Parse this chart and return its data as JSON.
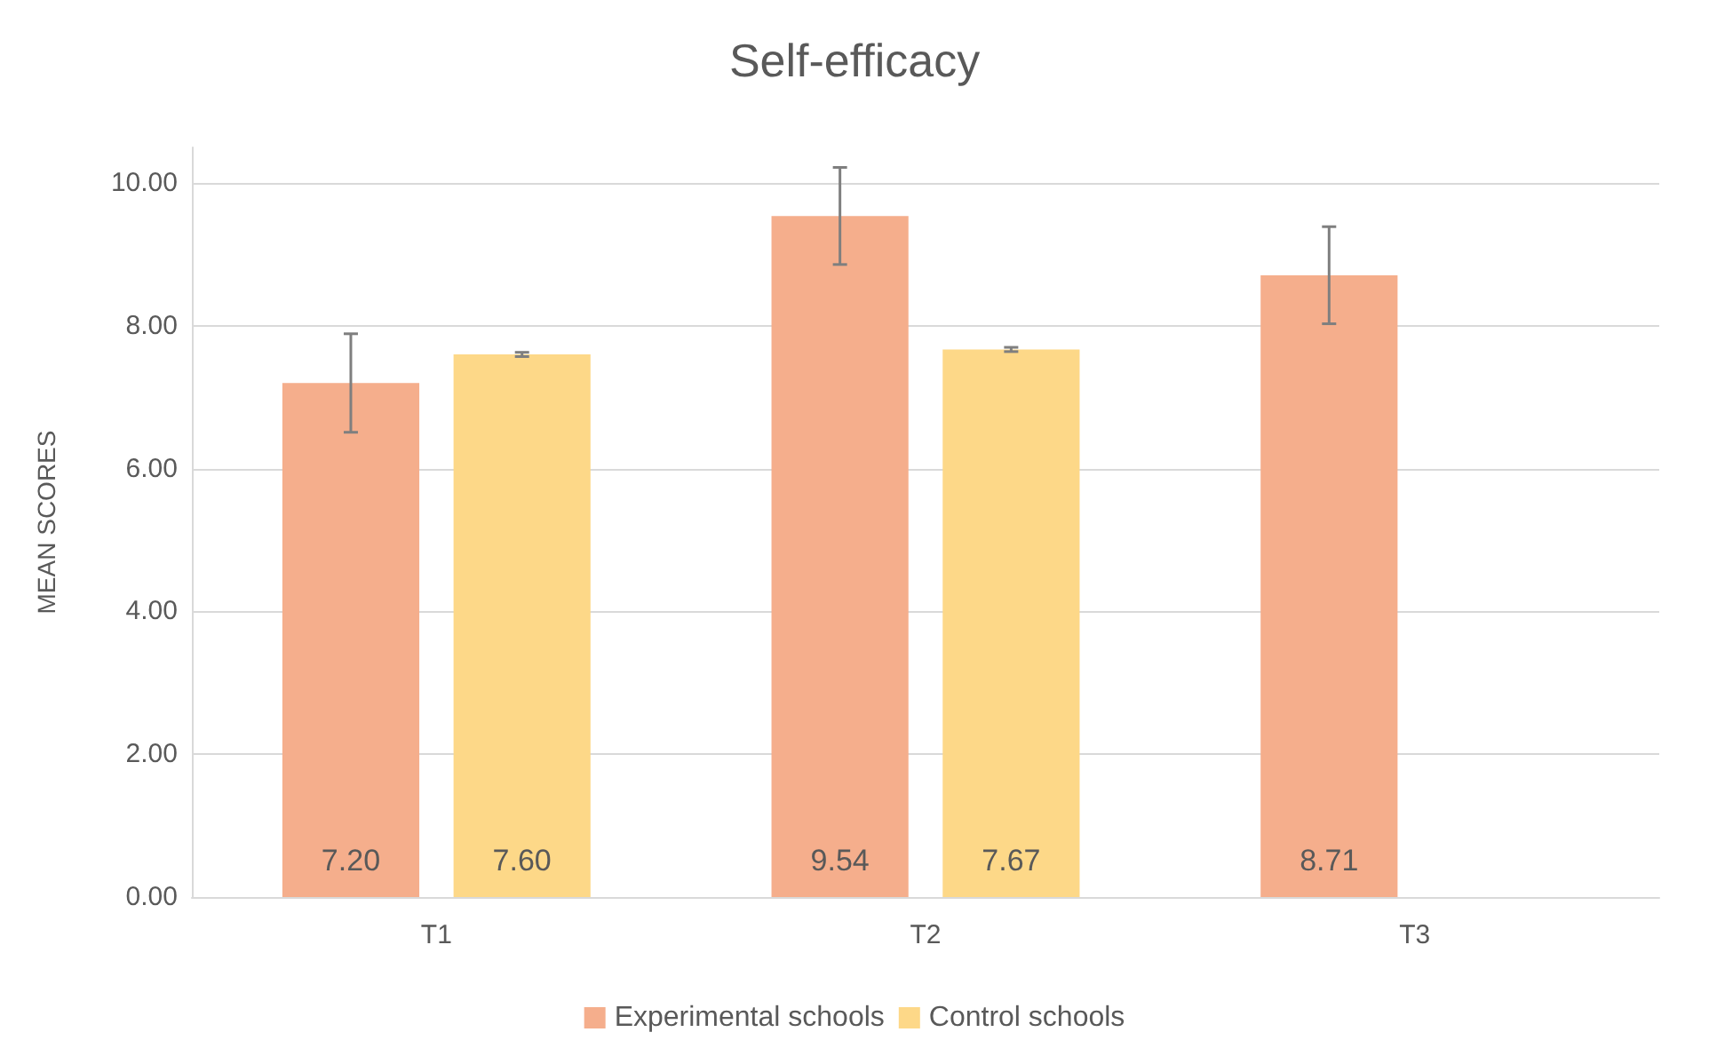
{
  "chart_data": {
    "type": "bar",
    "title": "Self-efficacy",
    "ylabel": "MEAN SCORES",
    "categories": [
      "T1",
      "T2",
      "T3"
    ],
    "series": [
      {
        "name": "Experimental schools",
        "color": "#f5ae8c",
        "values": [
          7.2,
          9.54,
          8.71
        ],
        "value_labels": [
          "7.20",
          "9.54",
          "8.71"
        ],
        "errors": [
          0.69,
          0.68,
          0.68
        ]
      },
      {
        "name": "Control schools",
        "color": "#fdd888",
        "values": [
          7.6,
          7.67,
          null
        ],
        "value_labels": [
          "7.60",
          "7.67",
          null
        ],
        "errors": [
          0.03,
          0.03,
          null
        ]
      }
    ],
    "ylim": [
      0,
      10.5
    ],
    "yticks": [
      {
        "value": 0,
        "label": "0.00"
      },
      {
        "value": 2,
        "label": "2.00"
      },
      {
        "value": 4,
        "label": "4.00"
      },
      {
        "value": 6,
        "label": "6.00"
      },
      {
        "value": 8,
        "label": "8.00"
      },
      {
        "value": 10,
        "label": "10.00"
      }
    ],
    "grid": "y",
    "legend": "bottom"
  }
}
